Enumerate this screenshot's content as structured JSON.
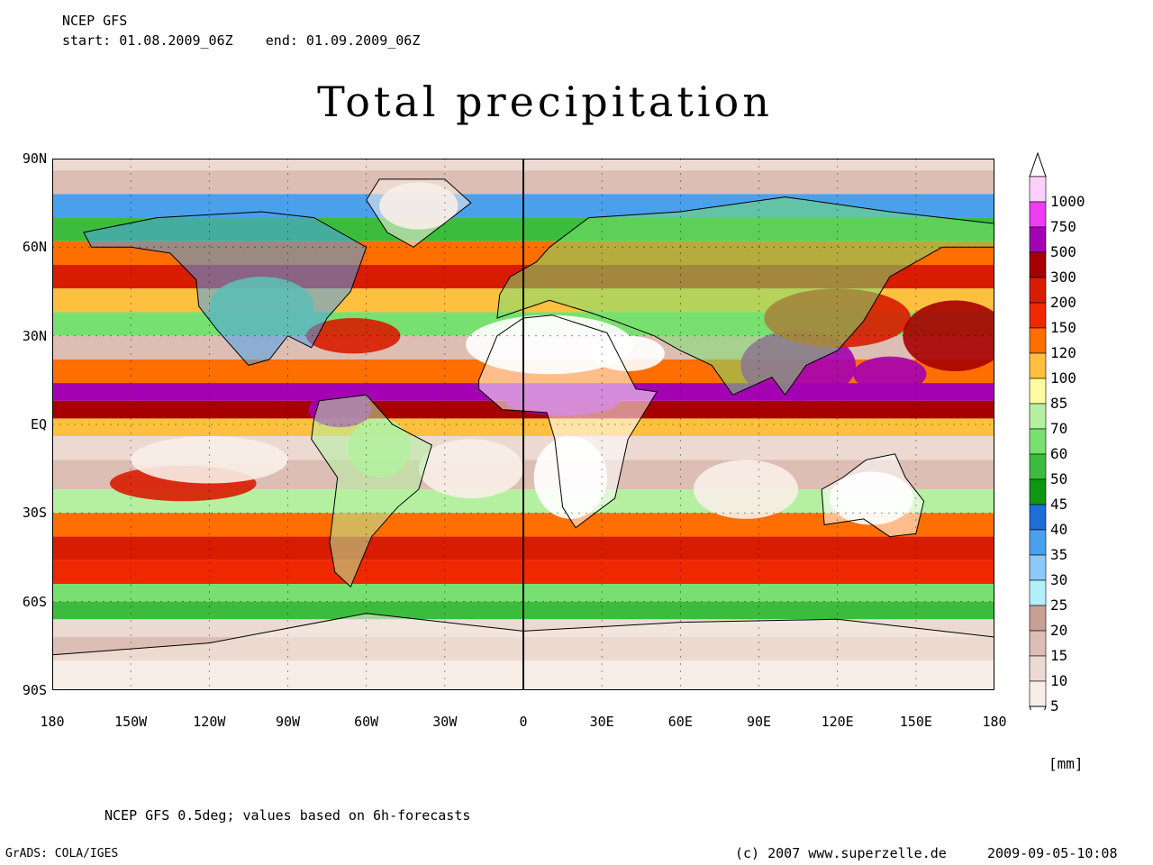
{
  "header": {
    "model": "NCEP GFS",
    "period": "start: 01.08.2009_06Z    end: 01.09.2009_06Z"
  },
  "title": "Total precipitation",
  "axes": {
    "y_labels": [
      "90N",
      "60N",
      "30N",
      "EQ",
      "30S",
      "60S",
      "90S"
    ],
    "x_labels": [
      "180",
      "150W",
      "120W",
      "90W",
      "60W",
      "30W",
      "0",
      "30E",
      "60E",
      "90E",
      "120E",
      "150E",
      "180"
    ]
  },
  "legend": {
    "levels": [
      "1000",
      "750",
      "500",
      "300",
      "200",
      "150",
      "120",
      "100",
      "85",
      "70",
      "60",
      "50",
      "45",
      "40",
      "35",
      "30",
      "25",
      "20",
      "15",
      "10",
      "5"
    ],
    "colors": [
      "#fcd0fc",
      "#ee3cf0",
      "#a400b4",
      "#a60000",
      "#d81c00",
      "#f02800",
      "#ff6e00",
      "#ffc040",
      "#fffaa0",
      "#b4f0a0",
      "#78e070",
      "#3cbc3c",
      "#109610",
      "#1e6ed8",
      "#4ba0ec",
      "#8cc8f8",
      "#b4f0fa",
      "#c8a096",
      "#ddbeb4",
      "#ecdad2",
      "#f8eee8"
    ],
    "unit": "[mm]"
  },
  "footer": {
    "note": "NCEP GFS 0.5deg; values based on 6h-forecasts",
    "software": "GrADS: COLA/IGES",
    "copyright": "(c) 2007 www.superzelle.de",
    "timestamp": "2009-09-05-10:08"
  },
  "map": {
    "bands": [
      {
        "lat": 86,
        "color": "#ecdad2"
      },
      {
        "lat": 78,
        "color": "#ddbeb4"
      },
      {
        "lat": 70,
        "color": "#4ba0ec"
      },
      {
        "lat": 62,
        "color": "#3cbc3c"
      },
      {
        "lat": 54,
        "color": "#ff6e00"
      },
      {
        "lat": 46,
        "color": "#d81c00"
      },
      {
        "lat": 38,
        "color": "#ffc040"
      },
      {
        "lat": 30,
        "color": "#78e070"
      },
      {
        "lat": 22,
        "color": "#ddbeb4"
      },
      {
        "lat": 14,
        "color": "#ff6e00"
      },
      {
        "lat": 8,
        "color": "#a400b4"
      },
      {
        "lat": 2,
        "color": "#a60000"
      },
      {
        "lat": -4,
        "color": "#ffc040"
      },
      {
        "lat": -12,
        "color": "#ecdad2"
      },
      {
        "lat": -22,
        "color": "#ddbeb4"
      },
      {
        "lat": -30,
        "color": "#b4f0a0"
      },
      {
        "lat": -38,
        "color": "#ff6e00"
      },
      {
        "lat": -46,
        "color": "#d81c00"
      },
      {
        "lat": -54,
        "color": "#f02800"
      },
      {
        "lat": -60,
        "color": "#78e070"
      },
      {
        "lat": -66,
        "color": "#3cbc3c"
      },
      {
        "lat": -72,
        "color": "#ecdad2"
      },
      {
        "lat": -80,
        "color": "#ddbeb4"
      },
      {
        "lat": -90,
        "color": "#f8eee8"
      }
    ],
    "blobs": [
      {
        "lon": 105,
        "lat": 20,
        "rx": 22,
        "ry": 12,
        "color": "#a400b4"
      },
      {
        "lon": 140,
        "lat": 17,
        "rx": 14,
        "ry": 6,
        "color": "#a400b4"
      },
      {
        "lon": 120,
        "lat": 36,
        "rx": 28,
        "ry": 10,
        "color": "#d81c00"
      },
      {
        "lon": 165,
        "lat": 30,
        "rx": 20,
        "ry": 12,
        "color": "#a60000"
      },
      {
        "lon": 15,
        "lat": 8,
        "rx": 22,
        "ry": 5,
        "color": "#a400b4"
      },
      {
        "lon": -70,
        "lat": 5,
        "rx": 12,
        "ry": 6,
        "color": "#a400b4"
      },
      {
        "lon": -65,
        "lat": 30,
        "rx": 18,
        "ry": 6,
        "color": "#d81c00"
      },
      {
        "lon": -130,
        "lat": -20,
        "rx": 28,
        "ry": 6,
        "color": "#d81c00"
      },
      {
        "lon": 10,
        "lat": 27,
        "rx": 32,
        "ry": 10,
        "color": "#ffffff"
      },
      {
        "lon": 40,
        "lat": 24,
        "rx": 14,
        "ry": 6,
        "color": "#ffffff"
      },
      {
        "lon": 18,
        "lat": -18,
        "rx": 14,
        "ry": 14,
        "color": "#ffffff"
      },
      {
        "lon": 133,
        "lat": -25,
        "rx": 16,
        "ry": 9,
        "color": "#ffffff"
      },
      {
        "lon": -40,
        "lat": 74,
        "rx": 15,
        "ry": 8,
        "color": "#f8eee8"
      },
      {
        "lon": -120,
        "lat": -12,
        "rx": 30,
        "ry": 8,
        "color": "#f8eee8"
      },
      {
        "lon": -20,
        "lat": -15,
        "rx": 20,
        "ry": 10,
        "color": "#f8eee8"
      },
      {
        "lon": 85,
        "lat": -22,
        "rx": 20,
        "ry": 10,
        "color": "#f8eee8"
      },
      {
        "lon": -55,
        "lat": -8,
        "rx": 12,
        "ry": 10,
        "color": "#b4f0a0"
      },
      {
        "lon": -100,
        "lat": 40,
        "rx": 20,
        "ry": 10,
        "color": "#78e070"
      }
    ],
    "land": [
      {
        "name": "north-america",
        "color": "#4ba0ec",
        "points": [
          [
            -168,
            65
          ],
          [
            -140,
            70
          ],
          [
            -100,
            72
          ],
          [
            -80,
            70
          ],
          [
            -60,
            60
          ],
          [
            -66,
            45
          ],
          [
            -75,
            36
          ],
          [
            -81,
            26
          ],
          [
            -90,
            30
          ],
          [
            -97,
            22
          ],
          [
            -105,
            20
          ],
          [
            -117,
            32
          ],
          [
            -124,
            40
          ],
          [
            -125,
            49
          ],
          [
            -135,
            58
          ],
          [
            -150,
            60
          ],
          [
            -165,
            60
          ]
        ]
      },
      {
        "name": "south-america",
        "color": "#b4f0a0",
        "points": [
          [
            -78,
            8
          ],
          [
            -60,
            10
          ],
          [
            -50,
            0
          ],
          [
            -35,
            -7
          ],
          [
            -40,
            -22
          ],
          [
            -48,
            -28
          ],
          [
            -58,
            -38
          ],
          [
            -66,
            -55
          ],
          [
            -72,
            -50
          ],
          [
            -74,
            -40
          ],
          [
            -71,
            -18
          ],
          [
            -81,
            -5
          ],
          [
            -80,
            2
          ]
        ]
      },
      {
        "name": "africa",
        "color": "#ffffff",
        "points": [
          [
            -17,
            15
          ],
          [
            -10,
            30
          ],
          [
            0,
            36
          ],
          [
            11,
            37
          ],
          [
            32,
            31
          ],
          [
            43,
            12
          ],
          [
            51,
            11
          ],
          [
            40,
            -5
          ],
          [
            35,
            -25
          ],
          [
            20,
            -35
          ],
          [
            15,
            -28
          ],
          [
            12,
            -5
          ],
          [
            9,
            4
          ],
          [
            -8,
            5
          ],
          [
            -17,
            12
          ]
        ]
      },
      {
        "name": "eurasia",
        "color": "#78e070",
        "points": [
          [
            -10,
            36
          ],
          [
            -9,
            44
          ],
          [
            -5,
            50
          ],
          [
            5,
            55
          ],
          [
            10,
            60
          ],
          [
            25,
            70
          ],
          [
            60,
            72
          ],
          [
            100,
            77
          ],
          [
            140,
            72
          ],
          [
            180,
            68
          ],
          [
            180,
            60
          ],
          [
            160,
            60
          ],
          [
            140,
            50
          ],
          [
            130,
            35
          ],
          [
            120,
            25
          ],
          [
            108,
            20
          ],
          [
            100,
            10
          ],
          [
            95,
            16
          ],
          [
            80,
            10
          ],
          [
            72,
            20
          ],
          [
            60,
            25
          ],
          [
            50,
            30
          ],
          [
            35,
            35
          ],
          [
            25,
            38
          ],
          [
            10,
            42
          ]
        ]
      },
      {
        "name": "australia",
        "color": "#ffffff",
        "points": [
          [
            114,
            -22
          ],
          [
            122,
            -18
          ],
          [
            131,
            -12
          ],
          [
            142,
            -10
          ],
          [
            146,
            -18
          ],
          [
            153,
            -26
          ],
          [
            150,
            -37
          ],
          [
            140,
            -38
          ],
          [
            130,
            -32
          ],
          [
            115,
            -34
          ]
        ]
      },
      {
        "name": "greenland",
        "color": "#f8eee8",
        "points": [
          [
            -55,
            83
          ],
          [
            -30,
            83
          ],
          [
            -20,
            75
          ],
          [
            -42,
            60
          ],
          [
            -52,
            65
          ],
          [
            -60,
            76
          ]
        ]
      },
      {
        "name": "antarctica",
        "color": "#f8eee8",
        "points": [
          [
            -180,
            -78
          ],
          [
            -120,
            -74
          ],
          [
            -60,
            -64
          ],
          [
            0,
            -70
          ],
          [
            60,
            -67
          ],
          [
            120,
            -66
          ],
          [
            180,
            -72
          ],
          [
            180,
            -90
          ],
          [
            -180,
            -90
          ]
        ]
      }
    ]
  }
}
